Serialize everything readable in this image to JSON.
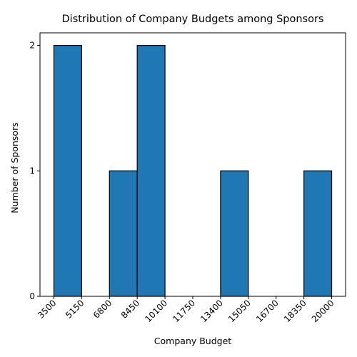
{
  "chart_data": {
    "type": "bar",
    "title": "Distribution of Company Budgets among Sponsors",
    "xlabel": "Company Budget",
    "ylabel": "Number of Sponsors",
    "bin_edges": [
      3500,
      5150,
      6800,
      8450,
      10100,
      11750,
      13400,
      15050,
      16700,
      18350,
      20000
    ],
    "values": [
      2,
      0,
      1,
      2,
      0,
      0,
      1,
      0,
      0,
      1
    ],
    "x_ticks": [
      "3500",
      "5150",
      "6800",
      "8450",
      "10100",
      "11750",
      "13400",
      "15050",
      "16700",
      "18350",
      "20000"
    ],
    "y_ticks": [
      "0",
      "1",
      "2"
    ],
    "xlim": [
      2675,
      20825
    ],
    "ylim": [
      0,
      2.1
    ],
    "grid": false,
    "colors": {
      "bar": "#1f77b4",
      "edge": "#000000"
    }
  }
}
